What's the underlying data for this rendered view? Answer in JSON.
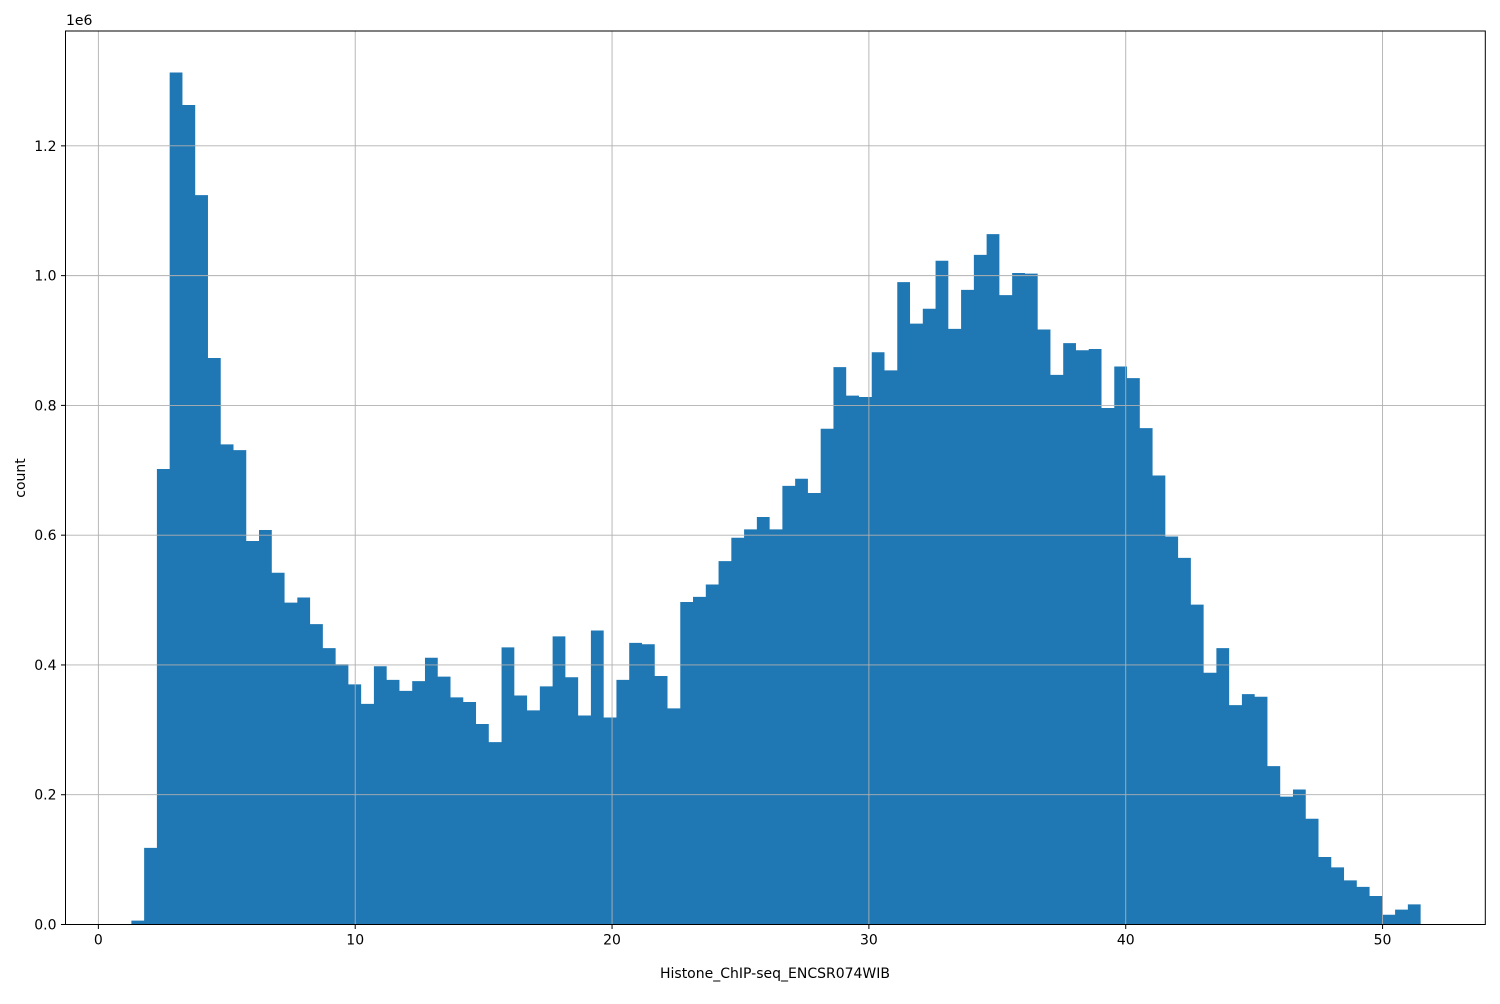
{
  "figure": {
    "background": "#ffffff",
    "xlabel": "Histone_ChIP-seq_ENCSR074WIB",
    "ylabel": "count",
    "offset_text": "1e6"
  },
  "chart_data": {
    "type": "bar",
    "subtype": "histogram",
    "title": "",
    "xlabel": "Histone_ChIP-seq_ENCSR074WIB",
    "ylabel": "count",
    "y_offset_label": "1e6",
    "y_multiplier": 1000000,
    "values_unit": "millions of counts (axis shows 1e6 offset)",
    "bin_start": 1.285,
    "bin_width": 0.497,
    "values": [
      0.006,
      0.118,
      0.702,
      1.313,
      1.263,
      1.124,
      0.873,
      0.74,
      0.731,
      0.591,
      0.608,
      0.542,
      0.496,
      0.504,
      0.463,
      0.426,
      0.401,
      0.37,
      0.34,
      0.398,
      0.377,
      0.36,
      0.375,
      0.411,
      0.382,
      0.35,
      0.343,
      0.309,
      0.281,
      0.427,
      0.353,
      0.33,
      0.367,
      0.444,
      0.381,
      0.322,
      0.453,
      0.319,
      0.377,
      0.434,
      0.432,
      0.383,
      0.333,
      0.497,
      0.505,
      0.524,
      0.56,
      0.596,
      0.609,
      0.628,
      0.609,
      0.676,
      0.687,
      0.665,
      0.764,
      0.859,
      0.815,
      0.813,
      0.882,
      0.854,
      0.99,
      0.926,
      0.949,
      1.023,
      0.918,
      0.978,
      1.032,
      1.064,
      0.97,
      1.004,
      1.003,
      0.917,
      0.847,
      0.896,
      0.885,
      0.887,
      0.796,
      0.86,
      0.842,
      0.765,
      0.692,
      0.598,
      0.565,
      0.493,
      0.388,
      0.426,
      0.338,
      0.355,
      0.351,
      0.244,
      0.197,
      0.208,
      0.163,
      0.104,
      0.088,
      0.068,
      0.058,
      0.044,
      0.015,
      0.023,
      0.031
    ],
    "x_ticks": [
      0,
      10,
      20,
      30,
      40,
      50
    ],
    "y_ticks": [
      0.0,
      0.2,
      0.4,
      0.6,
      0.8,
      1.0,
      1.2
    ],
    "xlim": [
      -1.28,
      54.0
    ],
    "ylim": [
      0,
      1.377
    ],
    "grid": true,
    "grid_color": "#b0b0b0",
    "bar_color": "#1f77b4",
    "spine_color": "#000000",
    "legend_position": "none"
  }
}
